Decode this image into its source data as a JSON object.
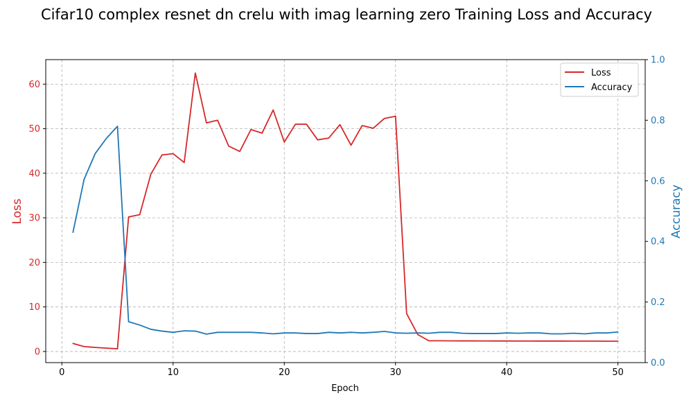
{
  "chart_data": {
    "type": "line",
    "title": "Cifar10 complex resnet dn crelu with imag learning zero Training Loss and Accuracy",
    "xlabel": "Epoch",
    "y1label": "Loss",
    "y2label": "Accuracy",
    "xlim": [
      -1.45,
      52.45
    ],
    "y1lim": [
      -2.5,
      65.5
    ],
    "y2lim": [
      0,
      1.0
    ],
    "xticks": [
      0,
      10,
      20,
      30,
      40,
      50
    ],
    "y1ticks": [
      0,
      10,
      20,
      30,
      40,
      50,
      60
    ],
    "y2ticks": [
      0.0,
      0.2,
      0.4,
      0.6,
      0.8,
      1.0
    ],
    "grid": true,
    "legend_position": "top-right",
    "colors": {
      "loss": "#d62728",
      "accuracy": "#1f77b4"
    },
    "x": [
      1,
      2,
      3,
      4,
      5,
      6,
      7,
      8,
      9,
      10,
      11,
      12,
      13,
      14,
      15,
      16,
      17,
      18,
      19,
      20,
      21,
      22,
      23,
      24,
      25,
      26,
      27,
      28,
      29,
      30,
      31,
      32,
      33,
      34,
      35,
      36,
      37,
      38,
      39,
      40,
      41,
      42,
      43,
      44,
      45,
      46,
      47,
      48,
      49,
      50
    ],
    "series": [
      {
        "name": "Loss",
        "axis": "left",
        "values": [
          1.8,
          1.1,
          0.9,
          0.75,
          0.6,
          30.2,
          30.7,
          39.8,
          44.1,
          44.4,
          42.4,
          62.5,
          51.3,
          51.9,
          46.1,
          44.9,
          49.8,
          49.0,
          54.2,
          47.0,
          51.0,
          51.0,
          47.5,
          47.9,
          50.9,
          46.3,
          50.7,
          50.1,
          52.3,
          52.8,
          8.5,
          3.8,
          2.4,
          2.4,
          2.38,
          2.37,
          2.37,
          2.36,
          2.35,
          2.35,
          2.34,
          2.34,
          2.33,
          2.33,
          2.33,
          2.32,
          2.32,
          2.32,
          2.31,
          2.31
        ]
      },
      {
        "name": "Accuracy",
        "axis": "right",
        "values": [
          0.43,
          0.605,
          0.69,
          0.74,
          0.78,
          0.135,
          0.124,
          0.11,
          0.104,
          0.1,
          0.105,
          0.104,
          0.094,
          0.1,
          0.1,
          0.1,
          0.1,
          0.098,
          0.095,
          0.098,
          0.098,
          0.096,
          0.096,
          0.1,
          0.098,
          0.1,
          0.098,
          0.1,
          0.103,
          0.098,
          0.097,
          0.098,
          0.097,
          0.1,
          0.1,
          0.097,
          0.096,
          0.096,
          0.096,
          0.098,
          0.097,
          0.098,
          0.098,
          0.095,
          0.095,
          0.097,
          0.095,
          0.098,
          0.098,
          0.101
        ]
      }
    ]
  }
}
